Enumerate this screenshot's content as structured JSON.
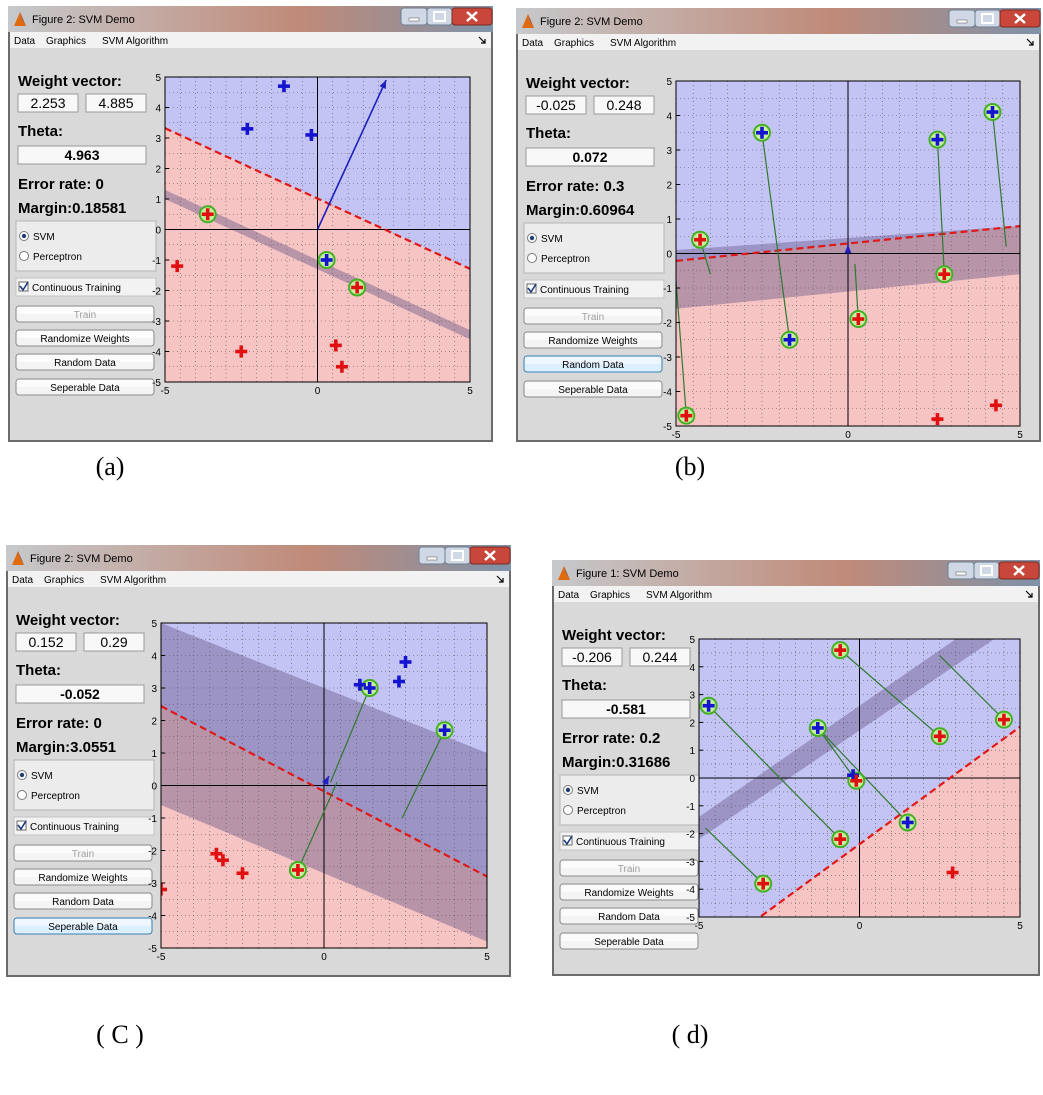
{
  "panels": [
    {
      "caption": "(a)",
      "window_title": "Figure 2: SVM Demo",
      "menu": [
        "Data",
        "Graphics",
        "SVM Algorithm"
      ],
      "weight_vector_label": "Weight vector:",
      "weight_vector": [
        "2.253",
        "4.885"
      ],
      "theta_label": "Theta:",
      "theta": "4.963",
      "error_rate_label": "Error rate: 0",
      "margin_label": "Margin:0.18581",
      "radio_svm": "SVM",
      "radio_perceptron": "Perceptron",
      "selected_algorithm": "SVM",
      "continuous_training": "Continuous Training",
      "continuous_checked": true,
      "train_button": "Train",
      "randomize_button": "Randomize Weights",
      "random_data_button": "Random Data",
      "separable_button": "Seperable Data",
      "highlighted_button": "",
      "axis": {
        "xlim": [
          -5,
          5
        ],
        "ylim": [
          -5,
          5
        ],
        "x_ticks": [
          "-5",
          "0",
          "5"
        ],
        "y_ticks": [
          "5",
          "4",
          "3",
          "2",
          "1",
          "0",
          "-1",
          "-2",
          "-3",
          "-4",
          "-5"
        ]
      }
    },
    {
      "caption": "(b)",
      "window_title": "Figure 2: SVM Demo",
      "menu": [
        "Data",
        "Graphics",
        "SVM Algorithm"
      ],
      "weight_vector_label": "Weight vector:",
      "weight_vector": [
        "-0.025",
        "0.248"
      ],
      "theta_label": "Theta:",
      "theta": "0.072",
      "error_rate_label": "Error rate: 0.3",
      "margin_label": "Margin:0.60964",
      "radio_svm": "SVM",
      "radio_perceptron": "Perceptron",
      "selected_algorithm": "SVM",
      "continuous_training": "Continuous Training",
      "continuous_checked": true,
      "train_button": "Train",
      "randomize_button": "Randomize Weights",
      "random_data_button": "Random Data",
      "separable_button": "Seperable Data",
      "highlighted_button": "random",
      "axis": {
        "xlim": [
          -5,
          5
        ],
        "ylim": [
          -5,
          5
        ],
        "x_ticks": [
          "-5",
          "0",
          "5"
        ],
        "y_ticks": [
          "5",
          "4",
          "3",
          "2",
          "1",
          "0",
          "-1",
          "-2",
          "-3",
          "-4",
          "-5"
        ]
      }
    },
    {
      "caption": "( C )",
      "window_title": "Figure 2: SVM Demo",
      "menu": [
        "Data",
        "Graphics",
        "SVM Algorithm"
      ],
      "weight_vector_label": "Weight vector:",
      "weight_vector": [
        "0.152",
        "0.29"
      ],
      "theta_label": "Theta:",
      "theta": "-0.052",
      "error_rate_label": "Error rate: 0",
      "margin_label": "Margin:3.0551",
      "radio_svm": "SVM",
      "radio_perceptron": "Perceptron",
      "selected_algorithm": "SVM",
      "continuous_training": "Continuous Training",
      "continuous_checked": true,
      "train_button": "Train",
      "randomize_button": "Randomize Weights",
      "random_data_button": "Random Data",
      "separable_button": "Seperable Data",
      "highlighted_button": "separable",
      "axis": {
        "xlim": [
          -5,
          5
        ],
        "ylim": [
          -5,
          5
        ],
        "x_ticks": [
          "-5",
          "0",
          "5"
        ],
        "y_ticks": [
          "5",
          "4",
          "3",
          "2",
          "1",
          "0",
          "-1",
          "-2",
          "-3",
          "-4",
          "-5"
        ]
      }
    },
    {
      "caption": "( d)",
      "window_title": "Figure 1: SVM Demo",
      "menu": [
        "Data",
        "Graphics",
        "SVM Algorithm"
      ],
      "weight_vector_label": "Weight vector:",
      "weight_vector": [
        "-0.206",
        "0.244"
      ],
      "theta_label": "Theta:",
      "theta": "-0.581",
      "error_rate_label": "Error rate: 0.2",
      "margin_label": "Margin:0.31686",
      "radio_svm": "SVM",
      "radio_perceptron": "Perceptron",
      "selected_algorithm": "SVM",
      "continuous_training": "Continuous Training",
      "continuous_checked": true,
      "train_button": "Train",
      "randomize_button": "Randomize Weights",
      "random_data_button": "Random Data",
      "separable_button": "Seperable Data",
      "highlighted_button": "",
      "axis": {
        "xlim": [
          -5,
          5
        ],
        "ylim": [
          -5,
          5
        ],
        "x_ticks": [
          "-5",
          "0",
          "5"
        ],
        "y_ticks": [
          "5",
          "4",
          "3",
          "2",
          "1",
          "0",
          "-1",
          "-2",
          "-3",
          "-4",
          "-5"
        ]
      }
    }
  ],
  "chart_data": [
    {
      "type": "scatter",
      "xlim": [
        -5,
        5
      ],
      "ylim": [
        -5,
        5
      ],
      "grid": true,
      "region_positive_color": "#c4c4f4",
      "region_negative_color": "#f7c4c4",
      "boundary": {
        "w": [
          2.253,
          4.885
        ],
        "theta": 4.963
      },
      "margin_band": [
        [
          -5,
          1.3,
          -5,
          1.0
        ],
        [
          5,
          -3.3,
          5,
          -3.6
        ]
      ],
      "weight_arrow": [
        [
          0,
          0
        ],
        [
          2.25,
          4.9
        ]
      ],
      "positive_points": [
        [
          -1.1,
          4.7
        ],
        [
          -2.3,
          3.3
        ],
        [
          -0.2,
          3.1
        ],
        [
          0.3,
          -1.0
        ]
      ],
      "negative_points": [
        [
          -4.6,
          -1.2
        ],
        [
          -3.6,
          0.5
        ],
        [
          -2.5,
          -4.0
        ],
        [
          0.6,
          -3.8
        ],
        [
          0.8,
          -4.5
        ],
        [
          1.3,
          -1.9
        ]
      ],
      "support_vectors": [
        [
          -3.6,
          0.5
        ],
        [
          0.3,
          -1.0
        ],
        [
          1.3,
          -1.9
        ]
      ],
      "projections": []
    },
    {
      "type": "scatter",
      "xlim": [
        -5,
        5
      ],
      "ylim": [
        -5,
        5
      ],
      "grid": true,
      "region_positive_color": "#c4c4f4",
      "region_negative_color": "#f7c4c4",
      "boundary": {
        "w": [
          -0.025,
          0.248
        ],
        "theta": 0.072
      },
      "margin_band": [
        [
          -5,
          0.1,
          -5,
          -1.6
        ],
        [
          5,
          0.8,
          5,
          -0.6
        ]
      ],
      "weight_arrow": [
        [
          0,
          0
        ],
        [
          0,
          0.25
        ]
      ],
      "positive_points": [
        [
          -2.5,
          3.5
        ],
        [
          2.6,
          3.3
        ],
        [
          4.2,
          4.1
        ],
        [
          -1.7,
          -2.5
        ]
      ],
      "negative_points": [
        [
          -4.3,
          0.4
        ],
        [
          -4.7,
          -4.7
        ],
        [
          0.3,
          -1.9
        ],
        [
          2.8,
          -0.6
        ],
        [
          2.6,
          -4.8
        ],
        [
          4.3,
          -4.4
        ]
      ],
      "support_vectors": [
        [
          -2.5,
          3.5
        ],
        [
          2.6,
          3.3
        ],
        [
          4.2,
          4.1
        ],
        [
          -1.7,
          -2.5
        ],
        [
          -4.3,
          0.4
        ],
        [
          -4.7,
          -4.7
        ],
        [
          0.3,
          -1.9
        ],
        [
          2.8,
          -0.6
        ]
      ],
      "projections": [
        [
          [
            -2.5,
            3.5
          ],
          [
            -1.7,
            -2.5
          ]
        ],
        [
          [
            -4.3,
            0.4
          ],
          [
            -4.0,
            -0.6
          ]
        ],
        [
          [
            -4.7,
            -4.7
          ],
          [
            -5.0,
            -0.8
          ]
        ],
        [
          [
            2.6,
            3.3
          ],
          [
            2.8,
            -0.6
          ]
        ],
        [
          [
            4.2,
            4.1
          ],
          [
            4.6,
            0.2
          ]
        ],
        [
          [
            0.3,
            -1.9
          ],
          [
            0.2,
            -0.3
          ]
        ]
      ]
    },
    {
      "type": "scatter",
      "xlim": [
        -5,
        5
      ],
      "ylim": [
        -5,
        5
      ],
      "grid": true,
      "region_positive_color": "#c4c4f4",
      "region_negative_color": "#f7c4c4",
      "boundary": {
        "w": [
          0.152,
          0.29
        ],
        "theta": -0.052
      },
      "margin_band": [
        [
          -5,
          5.0,
          -5,
          -0.6
        ],
        [
          5,
          1.0,
          5,
          -4.8
        ]
      ],
      "weight_arrow": [
        [
          0,
          0
        ],
        [
          0.15,
          0.29
        ]
      ],
      "positive_points": [
        [
          1.1,
          3.1
        ],
        [
          1.4,
          3.0
        ],
        [
          2.3,
          3.2
        ],
        [
          2.5,
          3.8
        ],
        [
          3.7,
          1.7
        ]
      ],
      "negative_points": [
        [
          -3.3,
          -2.1
        ],
        [
          -3.1,
          -2.3
        ],
        [
          -2.5,
          -2.7
        ],
        [
          -5.0,
          -3.2
        ],
        [
          -0.8,
          -2.6
        ]
      ],
      "support_vectors": [
        [
          1.4,
          3.0
        ],
        [
          3.7,
          1.7
        ],
        [
          -0.8,
          -2.6
        ]
      ],
      "projections": [
        [
          [
            1.4,
            3.0
          ],
          [
            0.2,
            0.1
          ]
        ],
        [
          [
            3.7,
            1.7
          ],
          [
            2.4,
            -1.0
          ]
        ],
        [
          [
            -0.8,
            -2.6
          ],
          [
            0.4,
            0.1
          ]
        ]
      ]
    },
    {
      "type": "scatter",
      "xlim": [
        -5,
        5
      ],
      "ylim": [
        -5,
        5
      ],
      "grid": true,
      "region_positive_color": "#c4c4f4",
      "region_negative_color": "#f7c4c4",
      "boundary": {
        "w": [
          -0.206,
          0.244
        ],
        "theta": -0.581
      },
      "margin_band": [
        [
          -5,
          -1.4,
          -5,
          -2.2
        ],
        [
          3.0,
          5.0,
          4.2,
          5.0
        ]
      ],
      "weight_arrow": [
        [
          0,
          0
        ],
        [
          -0.21,
          0.24
        ]
      ],
      "positive_points": [
        [
          -4.7,
          2.6
        ],
        [
          -1.3,
          1.8
        ],
        [
          -0.2,
          0.1
        ],
        [
          1.5,
          -1.6
        ]
      ],
      "negative_points": [
        [
          -0.6,
          4.6
        ],
        [
          2.5,
          1.5
        ],
        [
          4.5,
          2.1
        ],
        [
          -0.6,
          -2.2
        ],
        [
          -3.0,
          -3.8
        ],
        [
          2.9,
          -3.4
        ],
        [
          -0.1,
          -0.1
        ]
      ],
      "support_vectors": [
        [
          -4.7,
          2.6
        ],
        [
          -1.3,
          1.8
        ],
        [
          1.5,
          -1.6
        ],
        [
          -0.6,
          4.6
        ],
        [
          2.5,
          1.5
        ],
        [
          4.5,
          2.1
        ],
        [
          -0.6,
          -2.2
        ],
        [
          -3.0,
          -3.8
        ],
        [
          -0.1,
          -0.1
        ]
      ],
      "projections": [
        [
          [
            -4.7,
            2.6
          ],
          [
            -0.6,
            -2.2
          ]
        ],
        [
          [
            -1.3,
            1.8
          ],
          [
            1.5,
            -1.6
          ]
        ],
        [
          [
            -0.6,
            4.6
          ],
          [
            2.5,
            1.5
          ]
        ],
        [
          [
            2.5,
            4.4
          ],
          [
            4.5,
            2.1
          ]
        ],
        [
          [
            -3.0,
            -3.8
          ],
          [
            -4.8,
            -1.8
          ]
        ],
        [
          [
            -1.3,
            1.8
          ],
          [
            -0.1,
            -0.1
          ]
        ]
      ]
    }
  ]
}
